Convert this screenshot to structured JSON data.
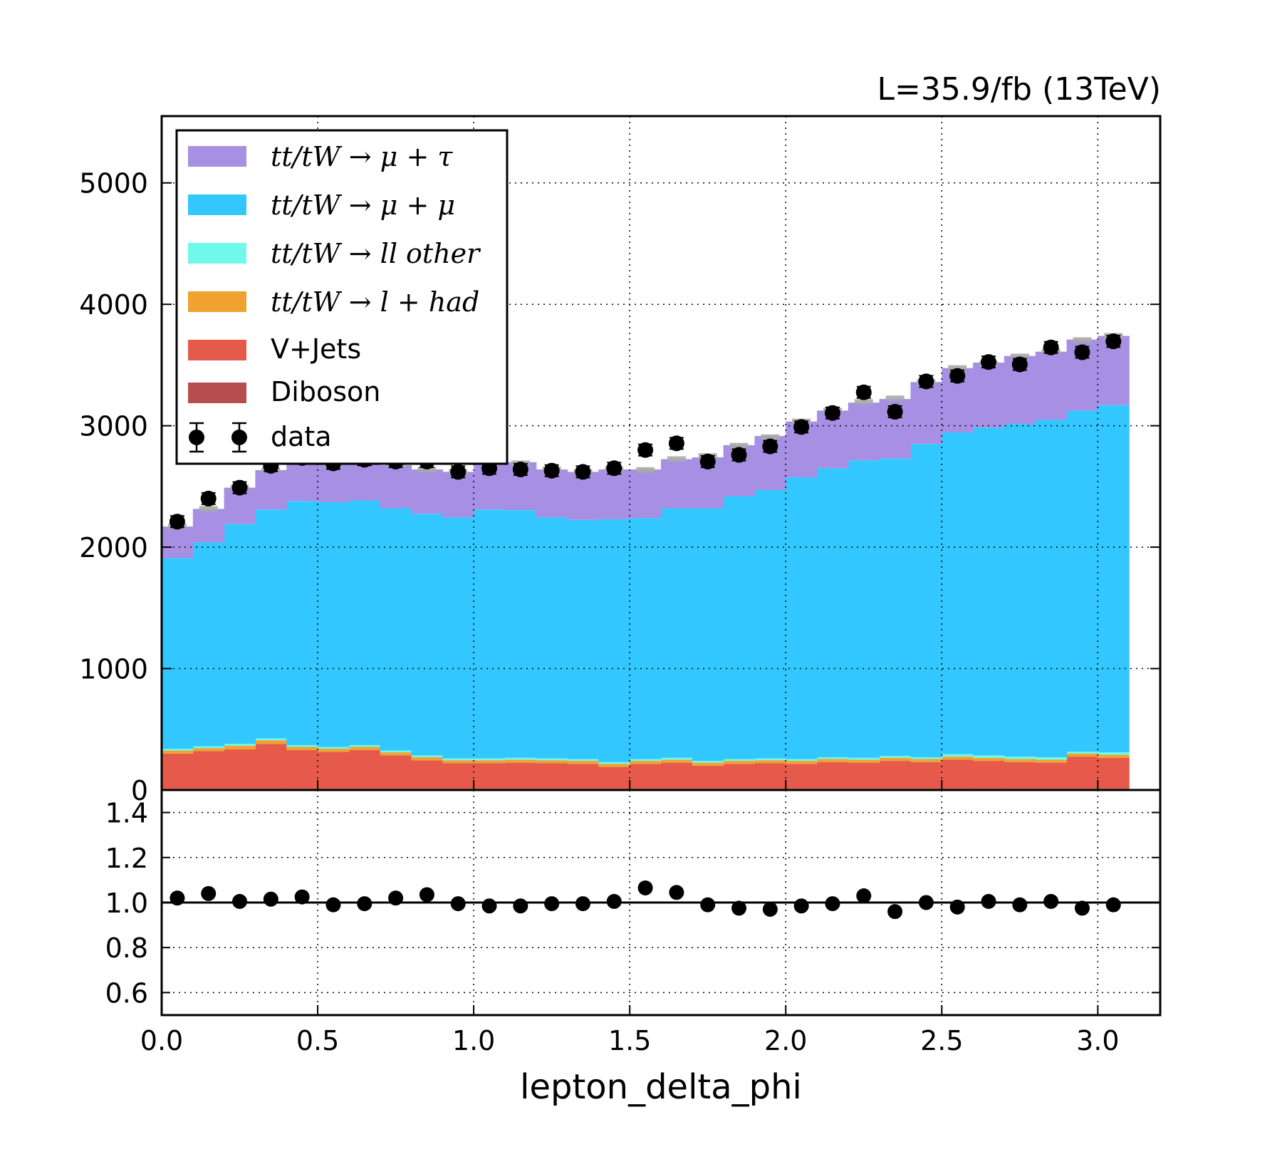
{
  "header": {
    "lumi_text": "L=35.9/fb (13TeV)"
  },
  "chart_data": [
    {
      "type": "area",
      "subtype": "stacked-step-histogram",
      "panel": "main",
      "xlim": [
        0.0,
        3.2
      ],
      "ylim": [
        0,
        5550
      ],
      "grid": true,
      "legend_position": "top-left",
      "bin_edges": [
        0.0,
        0.1,
        0.2,
        0.3,
        0.4,
        0.5,
        0.6,
        0.7,
        0.8,
        0.9,
        1.0,
        1.1,
        1.2,
        1.3,
        1.4,
        1.5,
        1.6,
        1.7,
        1.8,
        1.9,
        2.0,
        2.1,
        2.2,
        2.3,
        2.4,
        2.5,
        2.6,
        2.7,
        2.8,
        2.9,
        3.0,
        3.1
      ],
      "yticks": [
        0,
        1000,
        2000,
        3000,
        4000,
        5000
      ],
      "series": [
        {
          "name": "Diboson",
          "color": "#b74d4d",
          "values": [
            10,
            10,
            10,
            10,
            10,
            10,
            10,
            10,
            10,
            10,
            10,
            10,
            10,
            10,
            10,
            10,
            10,
            10,
            10,
            10,
            10,
            10,
            10,
            10,
            10,
            10,
            10,
            10,
            10,
            10,
            10
          ]
        },
        {
          "name": "V+Jets",
          "color": "#e55a4b",
          "values": [
            290,
            310,
            325,
            370,
            320,
            305,
            320,
            275,
            235,
            210,
            210,
            215,
            210,
            205,
            180,
            205,
            215,
            190,
            205,
            210,
            205,
            220,
            215,
            230,
            220,
            240,
            230,
            220,
            215,
            265,
            255
          ]
        },
        {
          "name": "tt/tW → l + had",
          "color": "#f0a230",
          "values": [
            25,
            25,
            30,
            30,
            25,
            25,
            25,
            25,
            25,
            25,
            25,
            25,
            25,
            25,
            25,
            25,
            25,
            25,
            25,
            25,
            25,
            25,
            25,
            25,
            25,
            25,
            25,
            25,
            25,
            25,
            25
          ]
        },
        {
          "name": "tt/tW → ll other",
          "color": "#6ef9ea",
          "values": [
            15,
            15,
            15,
            15,
            15,
            15,
            15,
            15,
            15,
            15,
            15,
            15,
            15,
            15,
            15,
            15,
            15,
            15,
            15,
            15,
            15,
            15,
            15,
            15,
            15,
            20,
            20,
            20,
            20,
            15,
            20
          ]
        },
        {
          "name": "tt/tW → μ + μ",
          "color": "#33c7ff",
          "values": [
            1570,
            1680,
            1810,
            1885,
            2010,
            2015,
            2015,
            1995,
            1990,
            1985,
            2050,
            2040,
            1985,
            1970,
            2000,
            1985,
            2055,
            2080,
            2165,
            2210,
            2320,
            2380,
            2450,
            2450,
            2580,
            2650,
            2700,
            2740,
            2780,
            2810,
            2860
          ]
        },
        {
          "name": "tt/tW → μ + τ",
          "color": "#a78fe3",
          "values": [
            260,
            275,
            300,
            325,
            320,
            310,
            335,
            355,
            365,
            375,
            395,
            395,
            395,
            395,
            410,
            400,
            405,
            420,
            420,
            445,
            460,
            475,
            475,
            490,
            510,
            530,
            535,
            560,
            560,
            585,
            570
          ]
        }
      ],
      "uncertainty_band": {
        "color": "#a9a9a9",
        "totals": [
          2170,
          2315,
          2490,
          2635,
          2700,
          2680,
          2720,
          2675,
          2640,
          2620,
          2695,
          2690,
          2640,
          2620,
          2640,
          2635,
          2725,
          2750,
          2835,
          2905,
          3035,
          3125,
          3195,
          3225,
          3360,
          3475,
          3510,
          3570,
          3610,
          3705,
          3740
        ]
      },
      "data": {
        "name": "data",
        "x": [
          0.05,
          0.15,
          0.25,
          0.35,
          0.45,
          0.55,
          0.65,
          0.75,
          0.85,
          0.95,
          1.05,
          1.15,
          1.25,
          1.35,
          1.45,
          1.55,
          1.65,
          1.75,
          1.85,
          1.95,
          2.05,
          2.15,
          2.25,
          2.35,
          2.45,
          2.55,
          2.65,
          2.75,
          2.85,
          2.95,
          3.05
        ],
        "y": [
          2210,
          2400,
          2490,
          2670,
          2735,
          2690,
          2720,
          2705,
          2705,
          2620,
          2650,
          2640,
          2630,
          2620,
          2650,
          2800,
          2855,
          2705,
          2760,
          2830,
          2990,
          3105,
          3275,
          3115,
          3365,
          3410,
          3525,
          3505,
          3645,
          3605,
          3695
        ],
        "yerr": 47
      }
    },
    {
      "type": "scatter",
      "panel": "ratio",
      "xlim": [
        0.0,
        3.2
      ],
      "ylim": [
        0.5,
        1.5
      ],
      "grid": true,
      "xlabel": "lepton_delta_phi",
      "xticks": [
        0.0,
        0.5,
        1.0,
        1.5,
        2.0,
        2.5,
        3.0
      ],
      "xtick_labels": [
        "0.0",
        "0.5",
        "1.0",
        "1.5",
        "2.0",
        "2.5",
        "3.0"
      ],
      "yticks": [
        0.6,
        0.8,
        1.0,
        1.2,
        1.4
      ],
      "ytick_labels": [
        "0.6",
        "0.8",
        "1.0",
        "1.2",
        "1.4"
      ],
      "reference_line": 1.0,
      "x": [
        0.05,
        0.15,
        0.25,
        0.35,
        0.45,
        0.55,
        0.65,
        0.75,
        0.85,
        0.95,
        1.05,
        1.15,
        1.25,
        1.35,
        1.45,
        1.55,
        1.65,
        1.75,
        1.85,
        1.95,
        2.05,
        2.15,
        2.25,
        2.35,
        2.45,
        2.55,
        2.65,
        2.75,
        2.85,
        2.95,
        3.05
      ],
      "y": [
        1.02,
        1.04,
        1.005,
        1.015,
        1.025,
        0.99,
        0.995,
        1.02,
        1.035,
        0.995,
        0.985,
        0.985,
        0.995,
        0.995,
        1.005,
        1.065,
        1.045,
        0.99,
        0.975,
        0.97,
        0.985,
        0.995,
        1.03,
        0.96,
        1.0,
        0.98,
        1.005,
        0.99,
        1.005,
        0.975,
        0.99
      ]
    }
  ]
}
